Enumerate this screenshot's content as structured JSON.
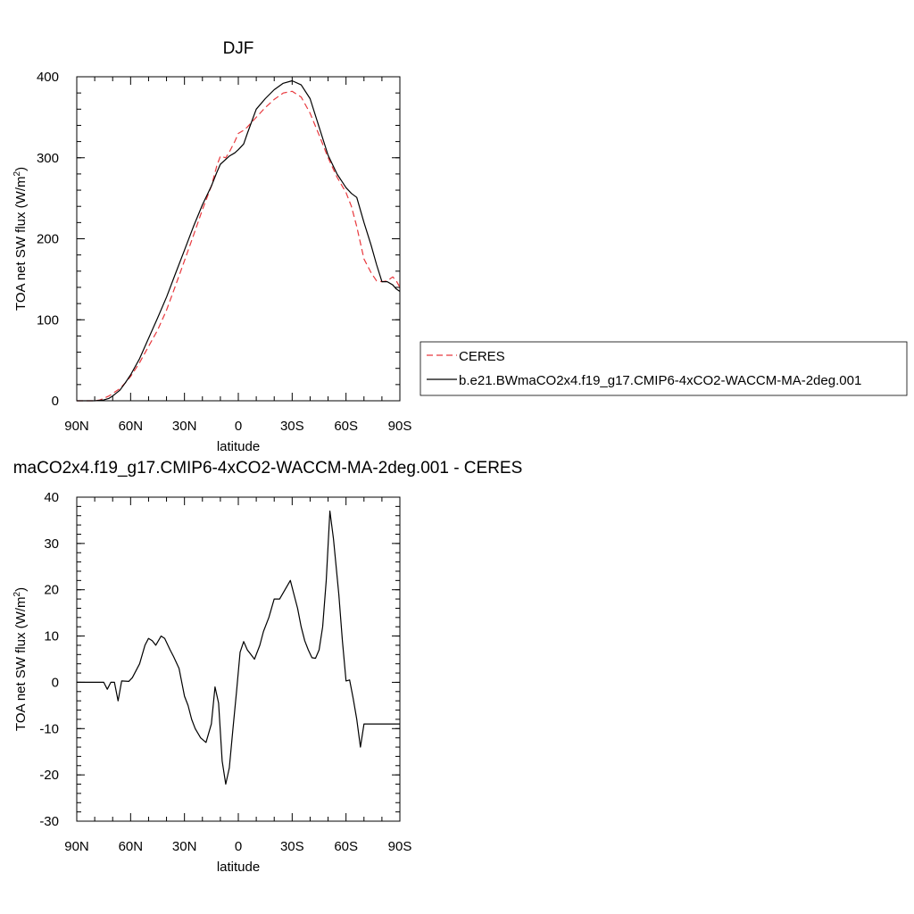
{
  "chart_data": [
    {
      "type": "line",
      "title": "DJF",
      "xlabel": "latitude",
      "ylabel": "TOA net SW flux (W/m²)",
      "xlim": [
        -90,
        90
      ],
      "ylim": [
        0,
        400
      ],
      "x_tick_labels": [
        "90N",
        "60N",
        "30N",
        "0",
        "30S",
        "60S",
        "90S"
      ],
      "x_tick_values": [
        -90,
        -60,
        -30,
        0,
        30,
        60,
        90
      ],
      "y_tick_values": [
        0,
        100,
        200,
        300,
        400
      ],
      "y_tick_labels": [
        "0",
        "100",
        "200",
        "300",
        "400"
      ],
      "grid": false,
      "legend_placement": "right",
      "series": [
        {
          "name": "CERES",
          "color": "#e8383d",
          "dash": "dashed",
          "x": [
            -90,
            -85,
            -80,
            -77,
            -75,
            -72,
            -70,
            -66,
            -63,
            -60,
            -55,
            -50,
            -45,
            -40,
            -35,
            -30,
            -25,
            -20,
            -15,
            -12,
            -10,
            -7,
            -5,
            -2,
            0,
            3,
            5,
            10,
            15,
            20,
            25,
            30,
            35,
            40,
            45,
            50,
            55,
            60,
            63,
            66,
            70,
            74,
            77,
            80,
            83,
            86,
            88,
            90
          ],
          "y": [
            0,
            0,
            0,
            1,
            3,
            6,
            9,
            15,
            22,
            30,
            47,
            67,
            87,
            112,
            142,
            173,
            204,
            236,
            265,
            290,
            302,
            300,
            307,
            320,
            330,
            334,
            338,
            350,
            362,
            372,
            380,
            382,
            375,
            355,
            328,
            300,
            276,
            257,
            240,
            215,
            175,
            158,
            148,
            147,
            148,
            153,
            148,
            140
          ]
        },
        {
          "name": "b.e21.BWmaCO2x4.f19_g17.CMIP6-4xCO2-WACCM-MA-2deg.001",
          "color": "#000000",
          "dash": "solid",
          "x": [
            -90,
            -85,
            -80,
            -77,
            -75,
            -72,
            -70,
            -66,
            -63,
            -60,
            -55,
            -50,
            -45,
            -40,
            -35,
            -30,
            -25,
            -20,
            -15,
            -12,
            -10,
            -7,
            -5,
            -2,
            0,
            3,
            5,
            10,
            15,
            20,
            25,
            30,
            35,
            40,
            45,
            50,
            55,
            60,
            63,
            66,
            70,
            74,
            77,
            80,
            83,
            86,
            88,
            90
          ],
          "y": [
            0,
            0,
            0,
            0.5,
            1,
            3,
            6,
            13,
            22,
            32,
            52,
            77,
            102,
            128,
            157,
            186,
            215,
            242,
            265,
            282,
            292,
            298,
            302,
            306,
            310,
            317,
            330,
            360,
            373,
            384,
            392,
            395,
            390,
            373,
            338,
            303,
            280,
            263,
            256,
            251,
            220,
            192,
            168,
            147,
            147,
            143,
            138,
            135
          ]
        }
      ]
    },
    {
      "type": "line",
      "title": "maCO2x4.f19_g17.CMIP6-4xCO2-WACCM-MA-2deg.001 - CERES",
      "xlabel": "latitude",
      "ylabel": "TOA net SW flux (W/m²)",
      "xlim": [
        -90,
        90
      ],
      "ylim": [
        -30,
        40
      ],
      "x_tick_labels": [
        "90N",
        "60N",
        "30N",
        "0",
        "30S",
        "60S",
        "90S"
      ],
      "x_tick_values": [
        -90,
        -60,
        -30,
        0,
        30,
        60,
        90
      ],
      "y_tick_values": [
        -30,
        -20,
        -10,
        0,
        10,
        20,
        30,
        40
      ],
      "y_tick_labels": [
        "-30",
        "-20",
        "-10",
        "0",
        "10",
        "20",
        "30",
        "40"
      ],
      "grid": false,
      "series": [
        {
          "color": "#000000",
          "dash": "solid",
          "x": [
            -90,
            -85,
            -80,
            -75,
            -73,
            -71,
            -69,
            -67,
            -65,
            -61,
            -59,
            -55,
            -52,
            -50,
            -48,
            -46,
            -43,
            -41,
            -38,
            -36,
            -33,
            -30,
            -28,
            -26,
            -24,
            -21,
            -18,
            -15,
            -13,
            -11,
            -9,
            -7,
            -5,
            -3,
            -1,
            1,
            3,
            5,
            7,
            9,
            12,
            14,
            17,
            20,
            23,
            26,
            29,
            31,
            33,
            35,
            37,
            39,
            41,
            43,
            45,
            47,
            49,
            51,
            53,
            56,
            58,
            60,
            62,
            64,
            66,
            68,
            70,
            72,
            74,
            76,
            78,
            80,
            82,
            84,
            86,
            88,
            90
          ],
          "y": [
            0,
            0,
            0,
            0,
            -1.5,
            0,
            0,
            -4,
            0.3,
            0.2,
            1,
            4,
            8,
            9.5,
            9,
            8,
            10,
            9.5,
            7,
            5.5,
            3,
            -3,
            -5,
            -8,
            -10,
            -12,
            -13,
            -9,
            -1,
            -4.5,
            -17,
            -22,
            -18.5,
            -10,
            -2,
            6.5,
            8.8,
            7,
            6,
            5,
            8,
            11,
            14,
            18,
            18,
            20,
            22,
            19,
            16,
            12,
            9,
            7,
            5.3,
            5.2,
            7,
            12,
            22,
            37,
            31,
            19,
            9,
            0.3,
            0.5,
            -3.5,
            -8,
            -14,
            -9,
            -9,
            -9,
            -9,
            -9,
            -9,
            -9,
            -9,
            -9,
            -9,
            -9
          ]
        }
      ]
    }
  ]
}
